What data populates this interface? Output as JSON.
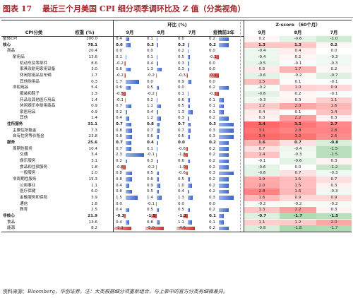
{
  "title": {
    "figure": "图表 17",
    "caption": "最近三个月美国 CPI 细分项季调环比及 Z 值（分类视角）"
  },
  "header": {
    "group_mom": "环比 (%)",
    "group_z": "Z-score （60个月）",
    "col_item": "CPI分类",
    "col_weight": "权重 (%)",
    "m1": "9月",
    "m2": "8月",
    "m3": "7月",
    "col_trend": "疫情前3年",
    "z1": "9月",
    "z2": "8月",
    "z3": "7月"
  },
  "colors": {
    "title_red": "#a3262a",
    "bar_pos": "#3a63c7",
    "bar_neg": "#d92b2b",
    "heat_red": "#e46a6a",
    "heat_green": "#5cab6b"
  },
  "rows": [
    {
      "name": "整体CPI",
      "level": 0,
      "bold": false,
      "w": "100.0",
      "m": [
        "0.4",
        "0.1",
        "0.0",
        "0.2"
      ],
      "z": [
        "0.2",
        "-0.6",
        "-1.0"
      ],
      "zv": [
        0.2,
        -0.6,
        -1.0
      ],
      "mv": [
        0.4,
        0.1,
        0.0,
        0.2
      ]
    },
    {
      "name": "核心",
      "level": 0,
      "bold": true,
      "w": "78.1",
      "m": [
        "0.6",
        "0.3",
        "0.3",
        "0.2"
      ],
      "z": [
        "1.3",
        "1.3",
        "0.2"
      ],
      "zv": [
        1.3,
        1.3,
        0.2
      ],
      "mv": [
        0.6,
        0.3,
        0.3,
        0.2
      ]
    },
    {
      "name": "商品",
      "level": 1,
      "bold": false,
      "w": "20.4",
      "m": [
        "0.0",
        "0.0",
        "0.2",
        "0.0"
      ],
      "z": [
        "-0.4",
        "0.4",
        "0.0"
      ],
      "zv": [
        -0.4,
        0.4,
        0.0
      ],
      "mv": [
        0.0,
        0.0,
        0.2,
        0.0
      ]
    },
    {
      "name": "耐用品",
      "level": 2,
      "bold": false,
      "w": "13.6",
      "m": [
        "0.1",
        "0.1",
        "0.5",
        "-0.1"
      ],
      "z": [
        "-0.4",
        "0.2",
        "-0.3"
      ],
      "zv": [
        -0.4,
        0.2,
        -0.3
      ],
      "mv": [
        0.1,
        0.1,
        0.5,
        -0.1
      ]
    },
    {
      "name": "机动车及零部件",
      "level": 3,
      "bold": false,
      "w": "8.6",
      "m": [
        "-0.2",
        "0.4",
        "0.3",
        "0.0"
      ],
      "z": [
        "-0.5",
        "-0.1",
        "-0.3"
      ],
      "zv": [
        -0.5,
        -0.1,
        -0.3
      ],
      "mv": [
        -0.2,
        0.4,
        0.3,
        0.0
      ]
    },
    {
      "name": "家具及耐用家用设备",
      "level": 3,
      "bold": false,
      "w": "3.0",
      "m": [
        "0.6",
        "1.3",
        "0.3",
        "0.0"
      ],
      "z": [
        "0.5",
        "1.7",
        "0.2"
      ],
      "zv": [
        0.5,
        1.7,
        0.2
      ],
      "mv": [
        0.6,
        1.3,
        0.3,
        0.0
      ]
    },
    {
      "name": "休闲耐用品及车辆",
      "level": 3,
      "bold": false,
      "w": "1.7",
      "m": [
        "-0.2",
        "-0.2",
        "-0.3",
        "-0.2"
      ],
      "z": [
        "-0.6",
        "-0.2",
        "-0.7"
      ],
      "zv": [
        -0.6,
        -0.2,
        -0.7
      ],
      "mv": [
        -0.2,
        -0.2,
        -0.3,
        -0.2
      ]
    },
    {
      "name": "其他耐用品",
      "level": 3,
      "bold": false,
      "w": "0.3",
      "m": [
        "1.7",
        "0.0",
        "0.9",
        "0.0"
      ],
      "z": [
        "1.5",
        "0.1",
        "-0.1"
      ],
      "zv": [
        1.5,
        0.1,
        -0.1
      ],
      "mv": [
        1.7,
        0.0,
        0.9,
        0.0
      ]
    },
    {
      "name": "非耐用品",
      "level": 2,
      "bold": false,
      "w": "5.4",
      "m": [
        "0.6",
        "0.5",
        "0.0",
        "0.2"
      ],
      "z": [
        "-0.2",
        "1.0",
        "0.9"
      ],
      "zv": [
        -0.2,
        1.0,
        0.9
      ],
      "mv": [
        0.6,
        0.5,
        0.0,
        0.2
      ]
    },
    {
      "name": "服装和鞋子",
      "level": 3,
      "bold": false,
      "w": "2.3",
      "m": [
        "-0.5",
        "-0.2",
        "0.1",
        "-0.1"
      ],
      "z": [
        "-0.6",
        "0.2",
        "-0.1"
      ],
      "zv": [
        -0.6,
        0.2,
        -0.1
      ],
      "mv": [
        -0.5,
        -0.2,
        0.1,
        -0.1
      ]
    },
    {
      "name": "药品及其他医疗用品",
      "level": 3,
      "bold": false,
      "w": "1.4",
      "m": [
        "-0.1",
        "0.2",
        "0.6",
        "0.1"
      ],
      "z": [
        "-0.3",
        "0.3",
        "1.1"
      ],
      "zv": [
        -0.3,
        0.3,
        1.1
      ],
      "mv": [
        -0.1,
        0.2,
        0.6,
        0.1
      ]
    },
    {
      "name": "休闲娱乐非耐用商品",
      "level": 3,
      "bold": false,
      "w": "0.9",
      "m": [
        "0.7",
        "1.1",
        "0.5",
        "0.1"
      ],
      "z": [
        "1.2",
        "2.0",
        "1.6"
      ],
      "zv": [
        1.2,
        2.0,
        1.6
      ],
      "mv": [
        0.7,
        1.1,
        0.5,
        0.1
      ]
    },
    {
      "name": "家居用品",
      "level": 3,
      "bold": false,
      "w": "0.9",
      "m": [
        "0.2",
        "0.4",
        "1.3",
        "0.1"
      ],
      "z": [
        "0.4",
        "0.1",
        "1.4"
      ],
      "zv": [
        0.4,
        0.1,
        1.4
      ],
      "mv": [
        0.2,
        0.4,
        1.3,
        0.1
      ]
    },
    {
      "name": "其他",
      "level": 3,
      "bold": false,
      "w": "1.4",
      "m": [
        "0.4",
        "1.2",
        "0.3",
        "0.2"
      ],
      "z": [
        "0.3",
        "2.2",
        "0.3"
      ],
      "zv": [
        0.3,
        2.2,
        0.3
      ],
      "mv": [
        0.4,
        1.2,
        0.3,
        0.2
      ]
    },
    {
      "name": "住所服务",
      "level": 1,
      "bold": true,
      "w": "31.1",
      "m": [
        "0.7",
        "0.8",
        "0.7",
        "0.3"
      ],
      "z": [
        "3.4",
        "3.1",
        "2.7"
      ],
      "zv": [
        3.4,
        3.1,
        2.7
      ],
      "mv": [
        0.7,
        0.8,
        0.7,
        0.3
      ]
    },
    {
      "name": "主要住所租金",
      "level": 2,
      "bold": false,
      "w": "7.3",
      "m": [
        "0.8",
        "0.7",
        "0.7",
        "0.3"
      ],
      "z": [
        "3.1",
        "2.8",
        "2.8"
      ],
      "zv": [
        3.1,
        2.8,
        2.8
      ],
      "mv": [
        0.8,
        0.7,
        0.7,
        0.3
      ]
    },
    {
      "name": "自有住房等价租金",
      "level": 2,
      "bold": false,
      "w": "23.8",
      "m": [
        "0.8",
        "0.6",
        "0.6",
        "0.3"
      ],
      "z": [
        "3.4",
        "3.2",
        "2.6"
      ],
      "zv": [
        3.4,
        3.2,
        2.6
      ],
      "mv": [
        0.8,
        0.6,
        0.6,
        0.3
      ]
    },
    {
      "name": "服务",
      "level": 1,
      "bold": true,
      "w": "25.6",
      "m": [
        "0.7",
        "0.4",
        "0.0",
        "0.2"
      ],
      "z": [
        "1.6",
        "0.7",
        "-0.8"
      ],
      "zv": [
        1.6,
        0.7,
        -0.8
      ],
      "mv": [
        0.7,
        0.4,
        0.0,
        0.2
      ]
    },
    {
      "name": "周期性服务",
      "level": 2,
      "bold": false,
      "w": "10.4",
      "m": [
        "0.7",
        "0.1",
        "-0.6",
        "0.2"
      ],
      "z": [
        "0.7",
        "-0.4",
        "-1.5"
      ],
      "zv": [
        0.7,
        -0.4,
        -1.5
      ],
      "mv": [
        0.7,
        0.1,
        -0.6,
        0.2
      ]
    },
    {
      "name": "交通",
      "level": 3,
      "bold": false,
      "w": "3.4",
      "m": [
        "2.3",
        "-0.1",
        "-1.3",
        "0.2"
      ],
      "z": [
        "1.4",
        "-0.3",
        "-1.5"
      ],
      "zv": [
        1.4,
        -0.3,
        -1.5
      ],
      "mv": [
        2.3,
        -0.1,
        -1.3,
        0.2
      ]
    },
    {
      "name": "娱乐服务",
      "level": 3,
      "bold": false,
      "w": "3.1",
      "m": [
        "0.2",
        "0.3",
        "0.6",
        "0.2"
      ],
      "z": [
        "-0.1",
        "-0.6",
        "0.3"
      ],
      "zv": [
        -0.1,
        -0.6,
        0.3
      ],
      "mv": [
        0.2,
        0.3,
        0.6,
        0.2
      ]
    },
    {
      "name": "食品和住宿服务",
      "level": 3,
      "bold": false,
      "w": "1.8",
      "m": [
        "-0.6",
        "-0.2",
        "-1.0",
        "0.2"
      ],
      "z": [
        "-0.6",
        "0.0",
        "-1.2"
      ],
      "zv": [
        -0.6,
        0.0,
        -1.2
      ],
      "mv": [
        -0.6,
        -0.2,
        -1.0,
        0.2
      ]
    },
    {
      "name": "一般服务",
      "level": 3,
      "bold": false,
      "w": "2.0",
      "m": [
        "0.8",
        "0.5",
        "-0.6",
        "0.3"
      ],
      "z": [
        "-0.6",
        "0.7",
        "-0.3"
      ],
      "zv": [
        -0.6,
        0.7,
        -0.3
      ],
      "mv": [
        0.8,
        0.5,
        -0.6,
        0.3
      ]
    },
    {
      "name": "非周期性服务",
      "level": 2,
      "bold": false,
      "w": "15.3",
      "m": [
        "0.8",
        "0.6",
        "0.5",
        "0.2"
      ],
      "z": [
        "1.9",
        "1.5",
        "0.7"
      ],
      "zv": [
        1.9,
        1.5,
        0.7
      ],
      "mv": [
        0.8,
        0.6,
        0.5,
        0.2
      ]
    },
    {
      "name": "公用事业",
      "level": 3,
      "bold": false,
      "w": "1.1",
      "m": [
        "0.4",
        "0.9",
        "1.0",
        "0.2"
      ],
      "z": [
        "2.0",
        "1.5",
        "0.3"
      ],
      "zv": [
        2.0,
        1.5,
        0.3
      ],
      "mv": [
        0.4,
        0.9,
        1.0,
        0.2
      ]
    },
    {
      "name": "医疗保健",
      "level": 3,
      "bold": false,
      "w": "6.0",
      "m": [
        "0.8",
        "0.5",
        "0.4",
        "0.2"
      ],
      "z": [
        "2.8",
        "1.6",
        "-0.3"
      ],
      "zv": [
        2.8,
        1.6,
        -0.3
      ],
      "mv": [
        0.8,
        0.5,
        0.4,
        0.2
      ]
    },
    {
      "name": "金融服务和保险",
      "level": 3,
      "bold": false,
      "w": "3.9",
      "m": [
        "1.5",
        "1.4",
        "1.3",
        "0.3"
      ],
      "z": [
        "1.6",
        "0.9",
        "0.9"
      ],
      "zv": [
        1.6,
        0.9,
        0.9
      ],
      "mv": [
        1.5,
        1.4,
        1.3,
        0.3
      ]
    },
    {
      "name": "通信",
      "level": 3,
      "bold": false,
      "w": "1.8",
      "m": [
        "0.0",
        "-0.1",
        "0.0",
        "0.0"
      ],
      "z": [
        "-0.2",
        "-0.2",
        "-0.2"
      ],
      "zv": [
        -0.2,
        -0.2,
        -0.2
      ],
      "mv": [
        0.0,
        -0.1,
        0.0,
        0.0
      ]
    },
    {
      "name": "教育",
      "level": 3,
      "bold": false,
      "w": "2.5",
      "m": [
        "0.4",
        "0.5",
        "0.5",
        "0.2"
      ],
      "z": [
        "1.3",
        "2.2",
        "0.3"
      ],
      "zv": [
        1.3,
        2.2,
        0.3
      ],
      "mv": [
        0.4,
        0.5,
        0.5,
        0.2
      ]
    },
    {
      "name": "非核心",
      "level": 0,
      "bold": true,
      "w": "21.9",
      "m": [
        "-0.3",
        "-1.5",
        "-1.2",
        "0.1"
      ],
      "z": [
        "-0.7",
        "-1.7",
        "-1.5"
      ],
      "zv": [
        -0.7,
        -1.7,
        -1.5
      ],
      "mv": [
        -0.3,
        -1.5,
        -1.2,
        0.1
      ]
    },
    {
      "name": "食品",
      "level": 1,
      "bold": false,
      "w": "13.6",
      "m": [
        "0.4",
        "0.8",
        "1.1",
        "0.1"
      ],
      "z": [
        "1.1",
        "1.2",
        "2.0"
      ],
      "zv": [
        1.1,
        1.2,
        2.0
      ],
      "mv": [
        0.4,
        0.8,
        1.1,
        0.1
      ]
    },
    {
      "name": "能源",
      "level": 1,
      "bold": false,
      "w": "8.2",
      "m": [
        "-2.1",
        "-5.0",
        "-4.6",
        "0.2"
      ],
      "z": [
        "-0.8",
        "-1.8",
        "-1.7"
      ],
      "zv": [
        -0.8,
        -1.8,
        -1.7
      ],
      "mv": [
        -2.1,
        -5.0,
        -4.6,
        0.2
      ]
    }
  ],
  "source": {
    "label": "资料来源：",
    "text": "Bloomberg，华创证券，",
    "note": "注：大类根据细分项重新组合，与上表中的官方分类有细微差异。"
  }
}
